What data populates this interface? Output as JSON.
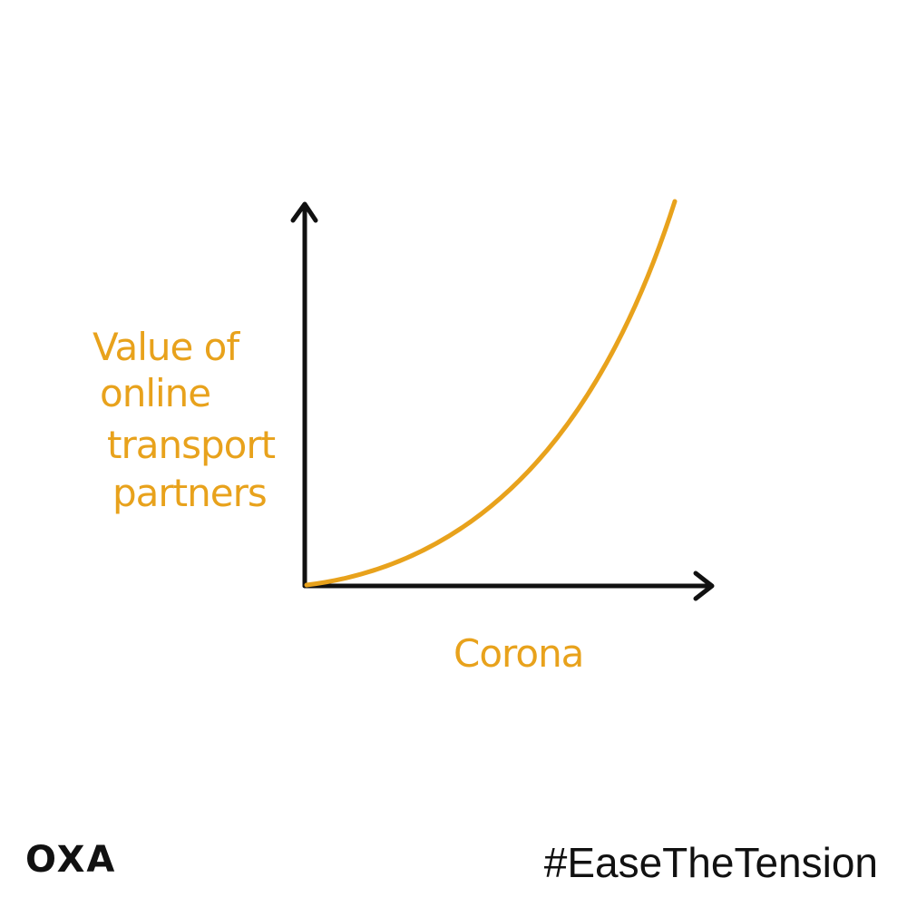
{
  "chart_data": {
    "type": "line",
    "title": "",
    "xlabel": "Corona",
    "ylabel_lines": [
      "Value of",
      "online",
      "transport",
      "partners"
    ],
    "grid": false,
    "legend": "none",
    "color": "#E8A21C",
    "axis_color": "#111111"
  },
  "footer": {
    "logo_text": "OXA",
    "hashtag": "#EaseTheTension"
  }
}
